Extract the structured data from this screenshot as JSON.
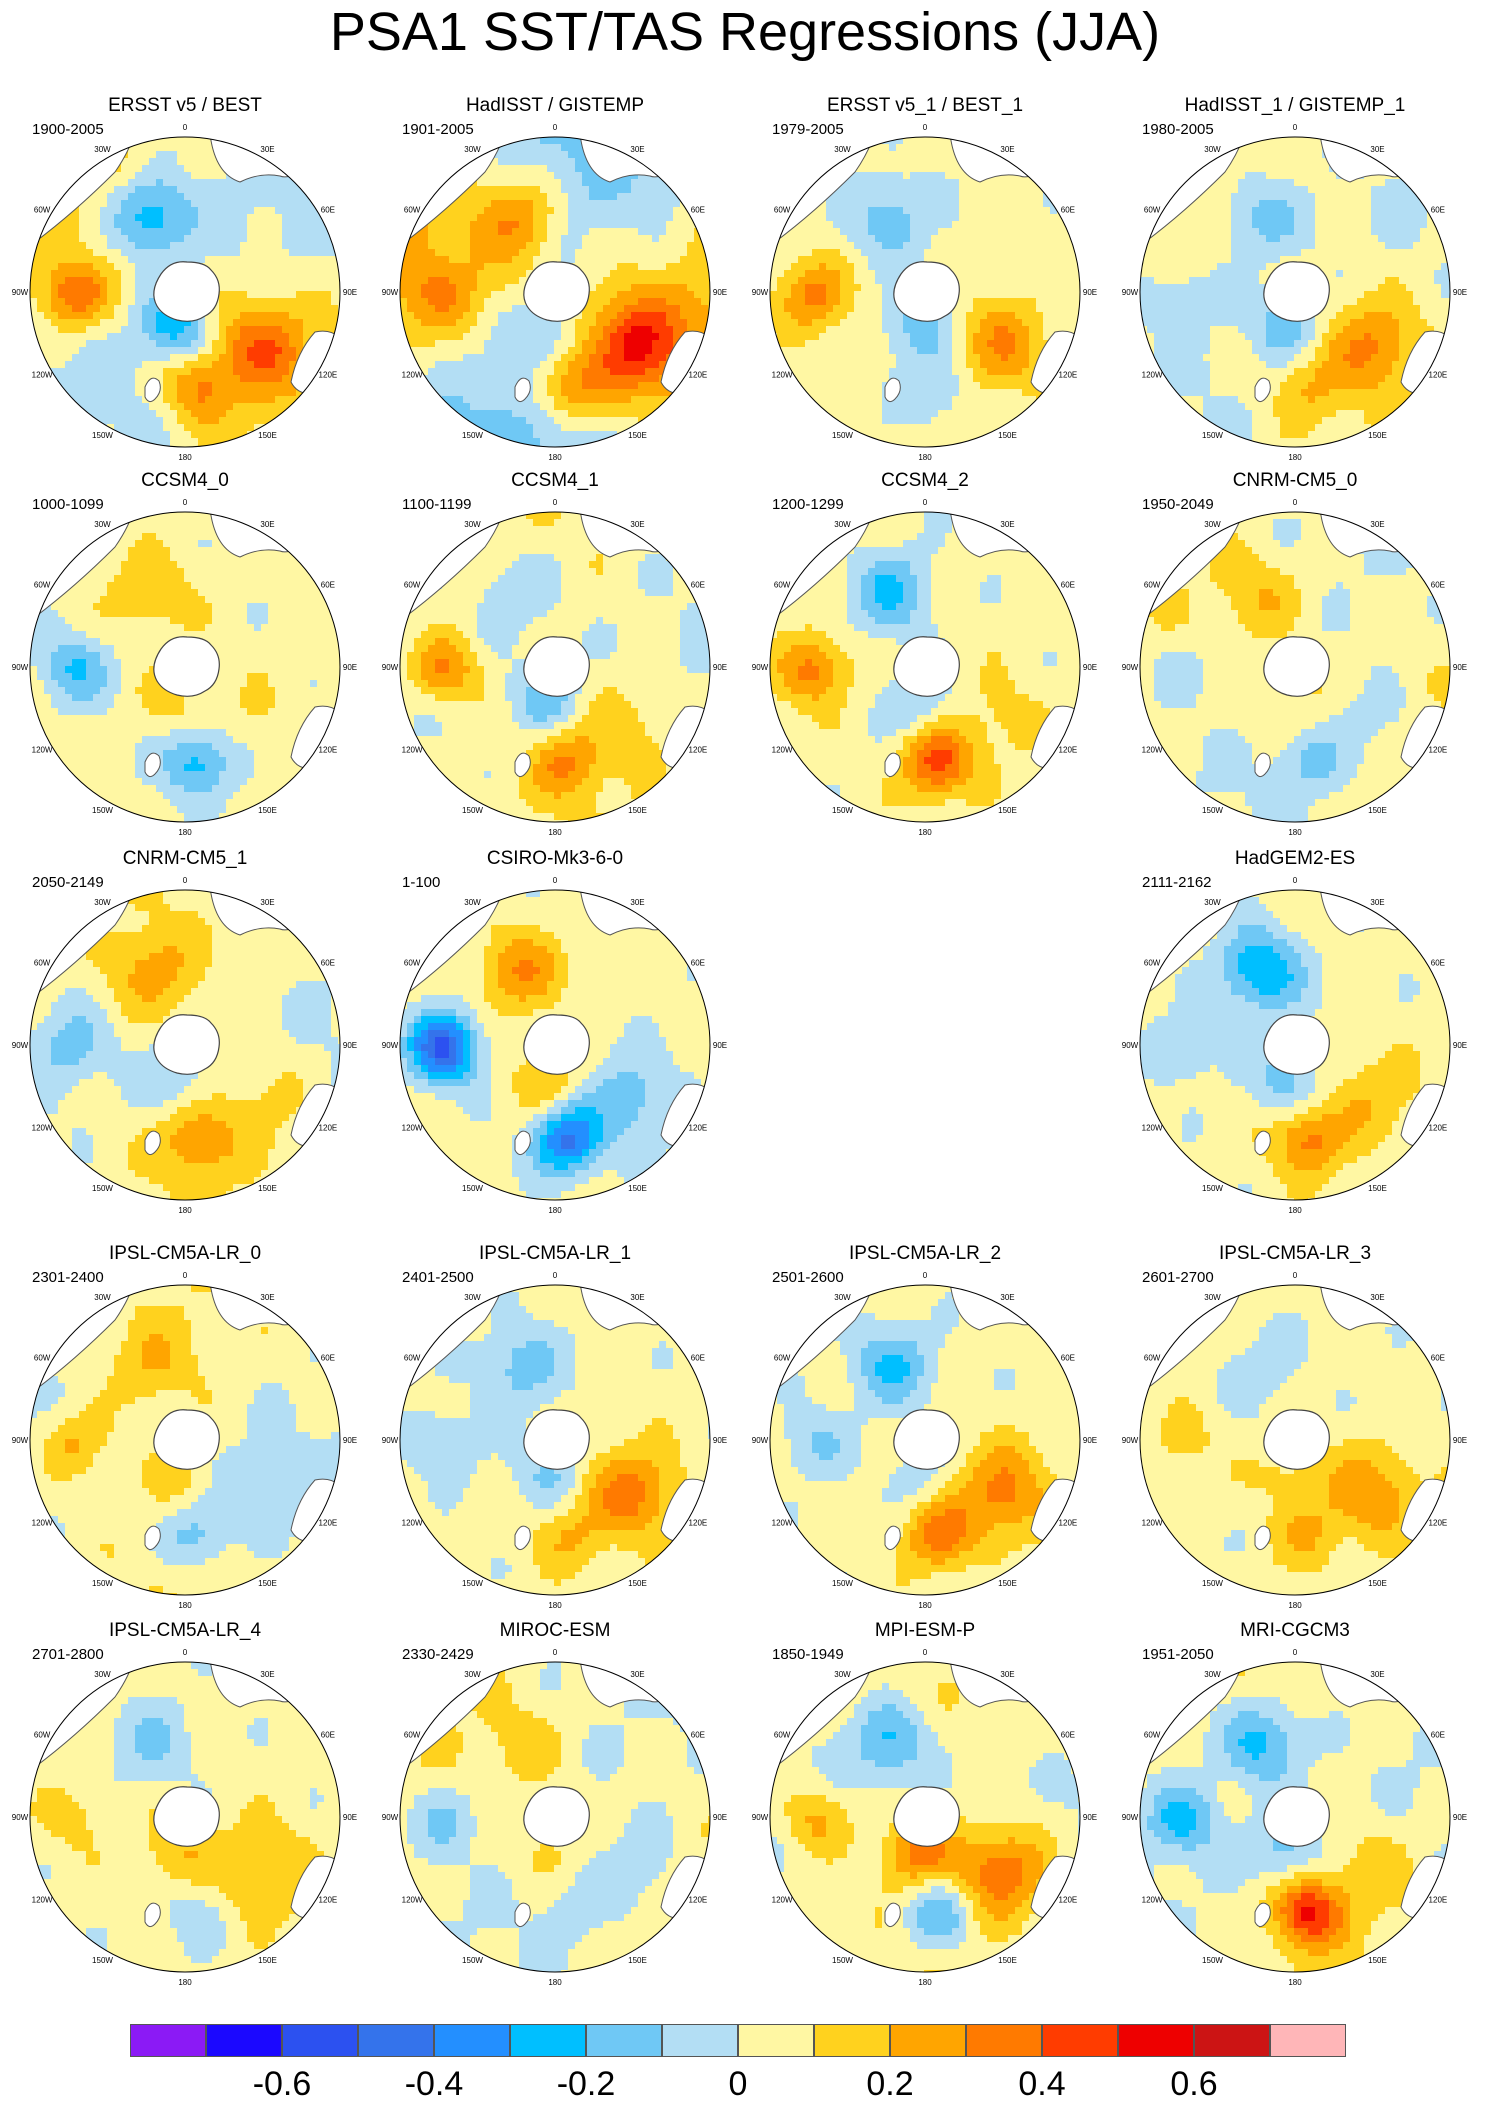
{
  "title": "PSA1 SST/TAS Regressions (JJA)",
  "longitude_labels": [
    "0",
    "30E",
    "60E",
    "90E",
    "120E",
    "150E",
    "180",
    "150W",
    "120W",
    "90W",
    "60W",
    "30W"
  ],
  "panels": [
    {
      "name": "ERSST v5 / BEST",
      "period": "1900-2005",
      "pattern": [
        0.35,
        -0.35,
        0.25,
        -0.3,
        0.3,
        0.1
      ]
    },
    {
      "name": "HadISST / GISTEMP",
      "period": "1901-2005",
      "pattern": [
        0.15,
        0.25,
        0.3,
        -0.1,
        0.4,
        0.2
      ]
    },
    {
      "name": "ERSST v5_1 / BEST_1",
      "period": "1979-2005",
      "pattern": [
        0.3,
        -0.2,
        -0.15,
        -0.2,
        0.25,
        0.0
      ]
    },
    {
      "name": "HadISST_1 / GISTEMP_1",
      "period": "1980-2005",
      "pattern": [
        -0.1,
        -0.2,
        0.15,
        -0.2,
        0.25,
        -0.05
      ]
    },
    {
      "name": "CCSM4_0",
      "period": "1000-1099",
      "pattern": [
        -0.25,
        0.15,
        -0.3,
        0.1,
        0.05,
        0.0
      ]
    },
    {
      "name": "CCSM4_1",
      "period": "1100-1199",
      "pattern": [
        0.3,
        -0.15,
        0.25,
        -0.2,
        0.1,
        0.05
      ]
    },
    {
      "name": "CCSM4_2",
      "period": "1200-1299",
      "pattern": [
        0.3,
        -0.25,
        0.4,
        -0.15,
        0.1,
        0.0
      ]
    },
    {
      "name": "CNRM-CM5_0",
      "period": "1950-2049",
      "pattern": [
        -0.1,
        0.15,
        -0.15,
        0.1,
        -0.1,
        0.05
      ]
    },
    {
      "name": "CNRM-CM5_1",
      "period": "2050-2149",
      "pattern": [
        -0.15,
        0.2,
        0.25,
        -0.15,
        0.1,
        -0.05
      ]
    },
    {
      "name": "CSIRO-Mk3-6-0",
      "period": "1-100",
      "pattern": [
        -0.55,
        0.25,
        -0.45,
        0.15,
        -0.2,
        0.0
      ]
    },
    {
      "name": "HadGEM2-ES",
      "period": "2111-2162",
      "pattern": [
        -0.15,
        -0.35,
        0.3,
        -0.2,
        0.15,
        0.0
      ]
    },
    {
      "name": "IPSL-CM5A-LR_0",
      "period": "2301-2400",
      "pattern": [
        0.2,
        0.15,
        -0.2,
        0.1,
        -0.1,
        0.05
      ]
    },
    {
      "name": "IPSL-CM5A-LR_1",
      "period": "2401-2500",
      "pattern": [
        -0.15,
        -0.2,
        0.15,
        -0.15,
        0.3,
        0.0
      ]
    },
    {
      "name": "IPSL-CM5A-LR_2",
      "period": "2501-2600",
      "pattern": [
        -0.15,
        -0.25,
        0.3,
        -0.1,
        0.3,
        0.0
      ]
    },
    {
      "name": "IPSL-CM5A-LR_3",
      "period": "2601-2700",
      "pattern": [
        0.1,
        -0.1,
        0.15,
        0.1,
        0.25,
        0.0
      ]
    },
    {
      "name": "IPSL-CM5A-LR_4",
      "period": "2701-2800",
      "pattern": [
        0.1,
        -0.15,
        -0.1,
        0.15,
        0.2,
        0.0
      ]
    },
    {
      "name": "MIROC-ESM",
      "period": "2330-2429",
      "pattern": [
        -0.15,
        0.1,
        -0.1,
        0.1,
        -0.15,
        -0.05
      ]
    },
    {
      "name": "MPI-ESM-P",
      "period": "1850-1949",
      "pattern": [
        0.2,
        -0.25,
        -0.25,
        0.3,
        0.35,
        0.05
      ]
    },
    {
      "name": "MRI-CGCM3",
      "period": "1951-2050",
      "pattern": [
        -0.25,
        -0.3,
        0.45,
        -0.2,
        0.1,
        0.05
      ]
    }
  ],
  "colorbar": {
    "levels": [
      -0.7,
      -0.6,
      -0.5,
      -0.4,
      -0.3,
      -0.2,
      -0.1,
      0,
      0.1,
      0.2,
      0.3,
      0.4,
      0.5,
      0.6,
      0.7
    ],
    "colors": [
      "#8b1af5",
      "#1b08ff",
      "#2c51f0",
      "#3473eb",
      "#238fff",
      "#00bfff",
      "#6fc8f5",
      "#b3def4",
      "#fff7a3",
      "#ffd21e",
      "#ffa500",
      "#ff7a00",
      "#ff3c00",
      "#ee0000",
      "#cc1414",
      "#ffb6b8"
    ],
    "labels": [
      "-0.6",
      "-0.4",
      "-0.2",
      "0",
      "0.2",
      "0.4",
      "0.6"
    ],
    "label_levels": [
      -0.6,
      -0.4,
      -0.2,
      0,
      0.2,
      0.4,
      0.6
    ]
  }
}
